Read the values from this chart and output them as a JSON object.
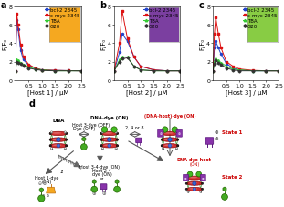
{
  "panels": {
    "a": {
      "title": "a",
      "xlabel": "[Host 1] / μM",
      "ylabel": "F/F₀",
      "xlim": [
        0,
        2.5
      ],
      "ylim": [
        0,
        8
      ],
      "yticks": [
        0,
        2,
        4,
        6,
        8
      ],
      "xticks": [
        0.5,
        1.0,
        1.5,
        2.0,
        2.5
      ],
      "inset_color": "#f5a820",
      "series": {
        "bcl2_2345": {
          "label": "bcl-2 2345",
          "color": "#2244cc",
          "x": [
            0.0,
            0.05,
            0.1,
            0.2,
            0.3,
            0.5,
            0.75,
            1.0,
            1.5,
            2.0,
            2.5
          ],
          "y": [
            1.0,
            6.5,
            5.5,
            3.2,
            2.2,
            1.6,
            1.3,
            1.1,
            1.05,
            1.02,
            1.0
          ]
        },
        "cmyc_2345": {
          "label": "c-myc 2345",
          "color": "#dd1111",
          "x": [
            0.0,
            0.05,
            0.1,
            0.2,
            0.3,
            0.5,
            0.75,
            1.0,
            1.5,
            2.0,
            2.5
          ],
          "y": [
            1.0,
            7.2,
            6.0,
            3.8,
            2.5,
            1.7,
            1.3,
            1.1,
            1.05,
            1.02,
            1.0
          ]
        },
        "tba": {
          "label": "TBA",
          "color": "#33cc33",
          "x": [
            0.0,
            0.05,
            0.1,
            0.2,
            0.3,
            0.5,
            0.75,
            1.0,
            1.5,
            2.0,
            2.5
          ],
          "y": [
            1.0,
            2.2,
            2.1,
            1.9,
            1.7,
            1.4,
            1.2,
            1.1,
            1.0,
            1.0,
            1.0
          ]
        },
        "g20": {
          "label": "G20",
          "color": "#333333",
          "x": [
            0.0,
            0.05,
            0.1,
            0.2,
            0.3,
            0.5,
            0.75,
            1.0,
            1.5,
            2.0,
            2.5
          ],
          "y": [
            1.0,
            2.0,
            1.9,
            1.8,
            1.6,
            1.3,
            1.15,
            1.05,
            1.0,
            1.0,
            1.0
          ]
        }
      }
    },
    "b": {
      "title": "b",
      "xlabel": "[Host 2] / μM",
      "ylabel": "F/F₀",
      "xlim": [
        0,
        2.5
      ],
      "ylim": [
        0,
        8
      ],
      "yticks": [
        0,
        2,
        4,
        6,
        8
      ],
      "xticks": [
        0.5,
        1.0,
        1.5,
        2.0,
        2.5
      ],
      "inset_color": "#7b3fa0",
      "series": {
        "bcl2_2345": {
          "label": "bcl-2 2345",
          "color": "#2244cc",
          "x": [
            0.0,
            0.2,
            0.3,
            0.5,
            0.75,
            1.0,
            1.5,
            2.0,
            2.5
          ],
          "y": [
            1.0,
            3.0,
            5.0,
            4.2,
            2.5,
            1.5,
            1.1,
            1.0,
            1.0
          ]
        },
        "cmyc_2345": {
          "label": "c-myc 2345",
          "color": "#dd1111",
          "x": [
            0.0,
            0.2,
            0.3,
            0.5,
            0.75,
            1.0,
            1.5,
            2.0,
            2.5
          ],
          "y": [
            1.0,
            4.0,
            7.5,
            4.5,
            2.5,
            1.5,
            1.1,
            1.0,
            1.0
          ]
        },
        "tba": {
          "label": "TBA",
          "color": "#33cc33",
          "x": [
            0.0,
            0.2,
            0.3,
            0.5,
            0.75,
            1.0,
            1.5,
            2.0,
            2.5
          ],
          "y": [
            1.0,
            2.2,
            2.5,
            2.5,
            1.5,
            1.1,
            1.0,
            1.0,
            1.0
          ]
        },
        "g20": {
          "label": "G20",
          "color": "#333333",
          "x": [
            0.0,
            0.2,
            0.3,
            0.5,
            0.75,
            1.0,
            1.5,
            2.0,
            2.5
          ],
          "y": [
            1.0,
            2.0,
            2.3,
            2.4,
            1.5,
            1.1,
            1.0,
            1.0,
            1.0
          ]
        }
      }
    },
    "c": {
      "title": "c",
      "xlabel": "[Host 3] / μM",
      "ylabel": "F/F₀",
      "xlim": [
        0,
        2.5
      ],
      "ylim": [
        0,
        8
      ],
      "yticks": [
        0,
        2,
        4,
        6,
        8
      ],
      "xticks": [
        0.5,
        1.0,
        1.5,
        2.0,
        2.5
      ],
      "inset_color": "#88cc44",
      "series": {
        "bcl2_2345": {
          "label": "bcl-2 2345",
          "color": "#2244cc",
          "x": [
            0.0,
            0.05,
            0.1,
            0.2,
            0.3,
            0.5,
            0.75,
            1.0,
            1.5,
            2.0,
            2.5
          ],
          "y": [
            1.0,
            3.5,
            4.2,
            3.5,
            2.8,
            1.8,
            1.3,
            1.1,
            1.0,
            1.0,
            1.0
          ]
        },
        "cmyc_2345": {
          "label": "c-myc 2345",
          "color": "#dd1111",
          "x": [
            0.0,
            0.05,
            0.1,
            0.2,
            0.3,
            0.5,
            0.75,
            1.0,
            1.5,
            2.0,
            2.5
          ],
          "y": [
            1.0,
            5.0,
            6.8,
            5.0,
            3.5,
            2.0,
            1.5,
            1.2,
            1.05,
            1.0,
            1.0
          ]
        },
        "tba": {
          "label": "TBA",
          "color": "#33cc33",
          "x": [
            0.0,
            0.05,
            0.1,
            0.2,
            0.3,
            0.5,
            0.75,
            1.0,
            1.5,
            2.0,
            2.5
          ],
          "y": [
            1.0,
            2.0,
            2.3,
            2.1,
            1.9,
            1.5,
            1.2,
            1.1,
            1.0,
            1.0,
            1.0
          ]
        },
        "g20": {
          "label": "G20",
          "color": "#333333",
          "x": [
            0.0,
            0.05,
            0.1,
            0.2,
            0.3,
            0.5,
            0.75,
            1.0,
            1.5,
            2.0,
            2.5
          ],
          "y": [
            1.0,
            1.8,
            2.1,
            1.9,
            1.7,
            1.3,
            1.1,
            1.0,
            1.0,
            1.0,
            1.0
          ]
        }
      }
    }
  },
  "legend_labels": [
    "bcl-2 2345",
    "c-myc 2345",
    "TBA",
    "G20"
  ],
  "legend_colors": [
    "#2244cc",
    "#dd1111",
    "#33cc33",
    "#333333"
  ],
  "panel_label_fontsize": 7,
  "axis_label_fontsize": 5,
  "tick_fontsize": 4.5,
  "legend_fontsize": 4,
  "linewidth": 0.7,
  "marker_size": 1.5,
  "bg_color": "#ffffff"
}
